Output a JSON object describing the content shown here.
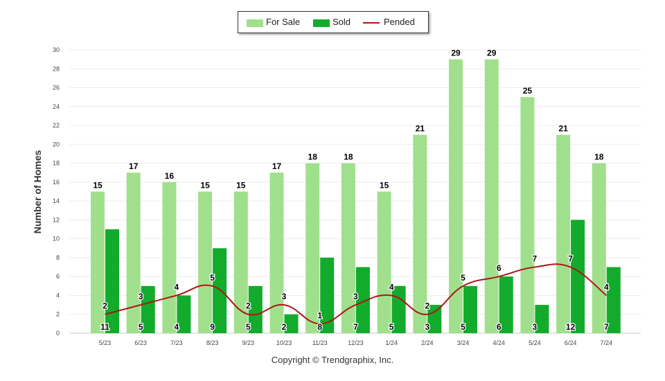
{
  "chart_data": {
    "type": "bar",
    "categories": [
      "5/23",
      "6/23",
      "7/23",
      "8/23",
      "9/23",
      "10/23",
      "11/23",
      "12/23",
      "1/24",
      "2/24",
      "3/24",
      "4/24",
      "5/24",
      "6/24",
      "7/24"
    ],
    "series": [
      {
        "name": "For Sale",
        "type": "bar",
        "color": "#a0e08c",
        "values": [
          15,
          17,
          16,
          15,
          15,
          17,
          18,
          18,
          15,
          21,
          29,
          29,
          25,
          21,
          18
        ]
      },
      {
        "name": "Sold",
        "type": "bar",
        "color": "#12ab2c",
        "values": [
          11,
          5,
          4,
          9,
          5,
          2,
          8,
          7,
          5,
          3,
          5,
          6,
          3,
          12,
          7
        ]
      },
      {
        "name": "Pended",
        "type": "line",
        "color": "#b01414",
        "values": [
          2,
          3,
          4,
          5,
          2,
          3,
          1,
          3,
          4,
          2,
          5,
          6,
          7,
          7,
          4
        ]
      }
    ],
    "ylabel": "Number of Homes",
    "ylim": [
      0,
      30
    ],
    "yticks": [
      0,
      2,
      4,
      6,
      8,
      10,
      12,
      14,
      16,
      18,
      20,
      22,
      24,
      26,
      28,
      30
    ],
    "grid": true,
    "legend_position": "top-center"
  },
  "legend": {
    "for_sale": "For Sale",
    "sold": "Sold",
    "pended": "Pended"
  },
  "footer": {
    "copyright": "Copyright © Trendgraphix, Inc."
  }
}
